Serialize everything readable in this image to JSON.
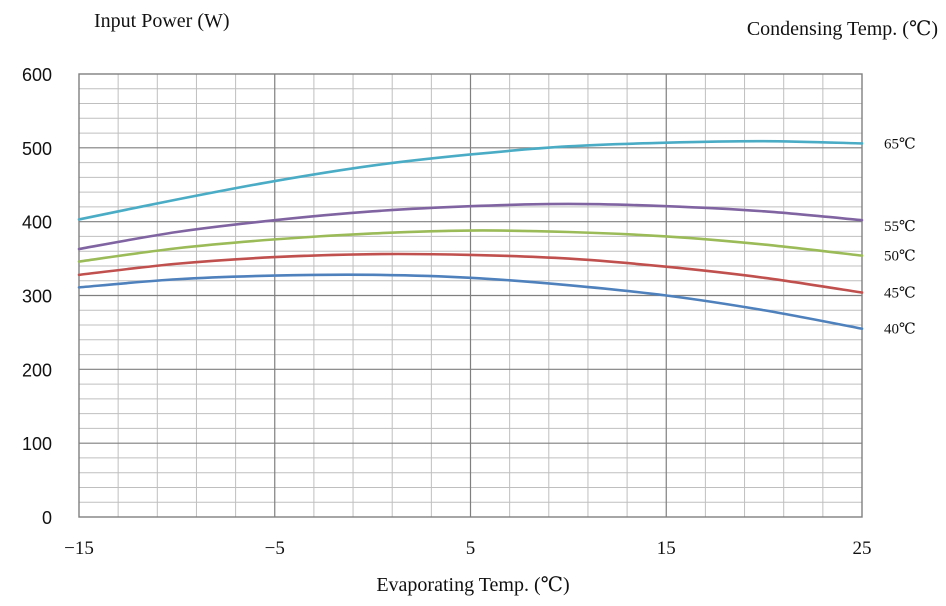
{
  "chart_data": {
    "type": "line",
    "ylabel": "Input Power (W)",
    "xlabel": "Evaporating Temp. (℃)",
    "legend_title": "Condensing Temp. (℃)",
    "xlim": [
      -15,
      25
    ],
    "ylim": [
      0,
      600
    ],
    "x_ticks": [
      "−15",
      "−5",
      "5",
      "15",
      "25"
    ],
    "y_ticks": [
      "0",
      "100",
      "200",
      "300",
      "400",
      "500",
      "600"
    ],
    "grid": true,
    "legend_placement": "right",
    "series": [
      {
        "name": "65℃",
        "color": "#4BACC6",
        "x": [
          -15,
          -10,
          -5,
          0,
          5,
          10,
          15,
          20,
          25
        ],
        "y": [
          403,
          430,
          455,
          476,
          491,
          502,
          507,
          509,
          506
        ]
      },
      {
        "name": "55℃",
        "color": "#8064A2",
        "x": [
          -15,
          -10,
          -5,
          0,
          5,
          10,
          15,
          20,
          25
        ],
        "y": [
          363,
          386,
          402,
          414,
          421,
          424,
          421,
          414,
          402
        ]
      },
      {
        "name": "50℃",
        "color": "#9BBB59",
        "x": [
          -15,
          -10,
          -5,
          0,
          5,
          10,
          15,
          20,
          25
        ],
        "y": [
          346,
          364,
          376,
          384,
          388,
          386,
          380,
          369,
          354
        ]
      },
      {
        "name": "45℃",
        "color": "#C0504D",
        "x": [
          -15,
          -10,
          -5,
          0,
          5,
          10,
          15,
          20,
          25
        ],
        "y": [
          328,
          343,
          352,
          356,
          355,
          350,
          339,
          324,
          304
        ]
      },
      {
        "name": "40℃",
        "color": "#4F81BD",
        "x": [
          -15,
          -10,
          -5,
          0,
          5,
          10,
          15,
          20,
          25
        ],
        "y": [
          311,
          322,
          327,
          328,
          324,
          314,
          300,
          280,
          255
        ]
      }
    ]
  }
}
